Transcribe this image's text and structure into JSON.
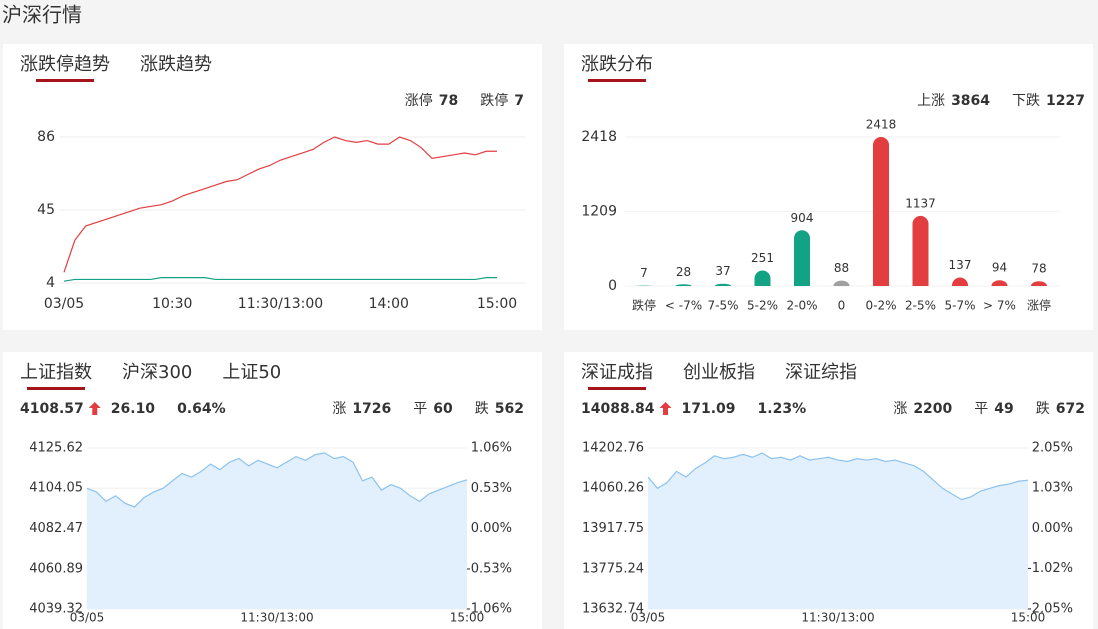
{
  "header": {
    "title": "沪深行情"
  },
  "chart_data": [
    {
      "type": "line",
      "tabs": [
        "涨跌停趋势",
        "涨跌趋势"
      ],
      "active_tab": 0,
      "ylim": [
        4,
        86
      ],
      "yticks": [
        4,
        45,
        86
      ],
      "xlim": [
        0,
        40
      ],
      "xticks": [
        {
          "value": 0,
          "label": "03/05"
        },
        {
          "value": 10,
          "label": "10:30"
        },
        {
          "value": 20,
          "label": "11:30/13:00"
        },
        {
          "value": 30,
          "label": "14:00"
        },
        {
          "value": 40,
          "label": "15:00"
        }
      ],
      "grid": true,
      "series": [
        {
          "name": "涨停",
          "last": 78,
          "color": "#e23d3f",
          "values": [
            10,
            28,
            36,
            38,
            40,
            42,
            44,
            46,
            47,
            48,
            50,
            53,
            55,
            57,
            59,
            61,
            62,
            65,
            68,
            70,
            73,
            75,
            77,
            79,
            83,
            86,
            84,
            83,
            84,
            82,
            82,
            86,
            84,
            80,
            74,
            75,
            76,
            77,
            76,
            78,
            78
          ]
        },
        {
          "name": "跌停",
          "last": 7,
          "color": "#13a283",
          "values": [
            5,
            6,
            6,
            6,
            6,
            6,
            6,
            6,
            6,
            7,
            7,
            7,
            7,
            7,
            6,
            6,
            6,
            6,
            6,
            6,
            6,
            6,
            6,
            6,
            6,
            6,
            6,
            6,
            6,
            6,
            6,
            6,
            6,
            6,
            6,
            6,
            6,
            6,
            6,
            7,
            7
          ]
        }
      ]
    },
    {
      "type": "bar",
      "tabs": [
        "涨跌分布"
      ],
      "active_tab": 0,
      "stats": [
        {
          "label": "上涨",
          "value": 3864,
          "color": "#e23d3f"
        },
        {
          "label": "下跌",
          "value": 1227,
          "color": "#13a283"
        }
      ],
      "categories": [
        "跌停",
        "< -7%",
        "7-5%",
        "5-2%",
        "2-0%",
        "0",
        "0-2%",
        "2-5%",
        "5-7%",
        "> 7%",
        "涨停"
      ],
      "values": [
        7,
        28,
        37,
        251,
        904,
        88,
        2418,
        1137,
        137,
        94,
        78
      ],
      "colors": [
        "#13a283",
        "#13a283",
        "#13a283",
        "#13a283",
        "#13a283",
        "#a0a0a0",
        "#e23d3f",
        "#e23d3f",
        "#e23d3f",
        "#e23d3f",
        "#e23d3f"
      ],
      "ylim": [
        0,
        2418
      ],
      "yticks": [
        0,
        1209,
        2418
      ],
      "grid": true
    },
    {
      "type": "area",
      "tabs": [
        "上证指数",
        "沪深300",
        "上证50"
      ],
      "active_tab": 0,
      "quote": {
        "price": "4108.57",
        "change": "26.10",
        "pct": "0.64%",
        "color": "#e23d3f"
      },
      "stats": [
        {
          "label": "涨",
          "value": 1726,
          "color": "#e23d3f"
        },
        {
          "label": "平",
          "value": 60,
          "color": "#999999"
        },
        {
          "label": "跌",
          "value": 562,
          "color": "#13a283"
        }
      ],
      "ylim": [
        4039.32,
        4125.62
      ],
      "yticks": [
        4039.32,
        4060.89,
        4082.47,
        4104.05,
        4125.62
      ],
      "ytick_colors": [
        "#13a283",
        "#13a283",
        "#999999",
        "#e23d3f",
        "#e23d3f"
      ],
      "y2lim": [
        -1.06,
        1.06
      ],
      "y2ticks": [
        {
          "value": -1.06,
          "label": "-1.06%"
        },
        {
          "value": -0.53,
          "label": "-0.53%"
        },
        {
          "value": 0,
          "label": "0.00%"
        },
        {
          "value": 0.53,
          "label": "0.53%"
        },
        {
          "value": 1.06,
          "label": "1.06%"
        }
      ],
      "xlim": [
        0,
        40
      ],
      "xticks": [
        {
          "value": 0,
          "label": "03/05"
        },
        {
          "value": 20,
          "label": "11:30/13:00"
        },
        {
          "value": 40,
          "label": "15:00"
        }
      ],
      "series": [
        {
          "color": "#8cc2ef",
          "values": [
            4104,
            4102,
            4097,
            4100,
            4096,
            4094,
            4099,
            4102,
            4104,
            4108,
            4112,
            4110,
            4113,
            4117,
            4114,
            4118,
            4120,
            4116,
            4119,
            4117,
            4115,
            4118,
            4121,
            4119,
            4122,
            4123,
            4120,
            4121,
            4118,
            4108,
            4110,
            4103,
            4106,
            4104,
            4100,
            4097,
            4101,
            4103,
            4105,
            4107,
            4108.57
          ]
        }
      ]
    },
    {
      "type": "area",
      "tabs": [
        "深证成指",
        "创业板指",
        "深证综指"
      ],
      "active_tab": 0,
      "quote": {
        "price": "14088.84",
        "change": "171.09",
        "pct": "1.23%",
        "color": "#e23d3f"
      },
      "stats": [
        {
          "label": "涨",
          "value": 2200,
          "color": "#e23d3f"
        },
        {
          "label": "平",
          "value": 49,
          "color": "#999999"
        },
        {
          "label": "跌",
          "value": 672,
          "color": "#13a283"
        }
      ],
      "ylim": [
        13632.74,
        14202.76
      ],
      "yticks": [
        13632.74,
        13775.24,
        13917.75,
        14060.26,
        14202.76
      ],
      "ytick_colors": [
        "#13a283",
        "#13a283",
        "#999999",
        "#e23d3f",
        "#e23d3f"
      ],
      "y2lim": [
        -2.05,
        2.05
      ],
      "y2ticks": [
        {
          "value": -2.05,
          "label": "-2.05%"
        },
        {
          "value": -1.02,
          "label": "-1.02%"
        },
        {
          "value": 0,
          "label": "0.00%"
        },
        {
          "value": 1.03,
          "label": "1.03%"
        },
        {
          "value": 2.05,
          "label": "2.05%"
        }
      ],
      "xlim": [
        0,
        40
      ],
      "xticks": [
        {
          "value": 0,
          "label": "03/05"
        },
        {
          "value": 20,
          "label": "11:30/13:00"
        },
        {
          "value": 40,
          "label": "15:00"
        }
      ],
      "series": [
        {
          "color": "#8cc2ef",
          "values": [
            14100,
            14060,
            14080,
            14120,
            14100,
            14130,
            14150,
            14175,
            14165,
            14170,
            14180,
            14170,
            14185,
            14165,
            14170,
            14160,
            14175,
            14160,
            14165,
            14170,
            14160,
            14155,
            14165,
            14160,
            14165,
            14155,
            14160,
            14150,
            14140,
            14120,
            14090,
            14060,
            14040,
            14020,
            14030,
            14050,
            14060,
            14070,
            14075,
            14085,
            14088.84
          ]
        }
      ]
    }
  ]
}
